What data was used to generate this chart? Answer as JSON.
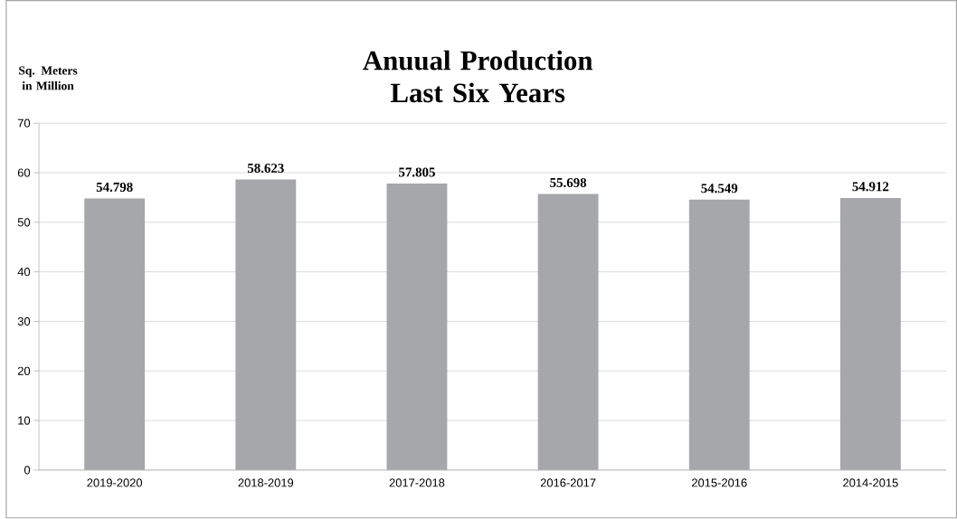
{
  "chart_data": {
    "type": "bar",
    "title": "Anuual Production Last Six Years",
    "ylabel": "Sq. Meters in Million",
    "categories": [
      "2019-2020",
      "2018-2019",
      "2017-2018",
      "2016-2017",
      "2015-2016",
      "2014-2015"
    ],
    "values": [
      54.798,
      58.623,
      57.805,
      55.698,
      54.549,
      54.912
    ],
    "color": "#a6a7aa",
    "ylim": [
      0,
      70
    ],
    "yticks": [
      0,
      10,
      20,
      30,
      40,
      50,
      60,
      70
    ],
    "grid": "y",
    "data_labels": true
  }
}
